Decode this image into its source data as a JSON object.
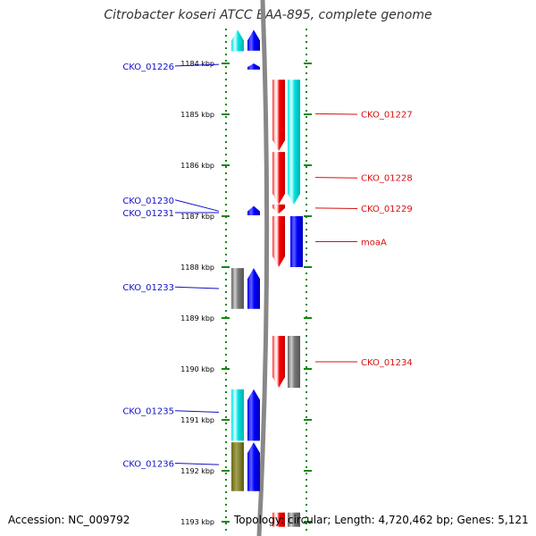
{
  "title": "Citrobacter koseri ATCC BAA-895, complete genome",
  "accession": "Accession: NC_009792",
  "topology": "Topology: circular; Length: 4,720,462 bp; Genes: 5,121",
  "colors": {
    "left_label": "#1010c8",
    "right_label": "#d81010",
    "tick": "#118811",
    "backbone": "#888888",
    "red": "#ff0000",
    "cyan": "#00e5e5",
    "blue": "#0000ff",
    "gray": "#777777",
    "olive": "#7a7a1a"
  },
  "ruler": [
    {
      "kbp": 1184,
      "label": "1184 kbp"
    },
    {
      "kbp": 1185,
      "label": "1185 kbp"
    },
    {
      "kbp": 1186,
      "label": "1186 kbp"
    },
    {
      "kbp": 1187,
      "label": "1187 kbp"
    },
    {
      "kbp": 1188,
      "label": "1188 kbp"
    },
    {
      "kbp": 1189,
      "label": "1189 kbp"
    },
    {
      "kbp": 1190,
      "label": "1190 kbp"
    },
    {
      "kbp": 1191,
      "label": "1191 kbp"
    },
    {
      "kbp": 1192,
      "label": "1192 kbp"
    },
    {
      "kbp": 1193,
      "label": "1193 kbp"
    }
  ],
  "features": [
    {
      "label": "CKO_01226",
      "side": "left",
      "lane": "blue",
      "color": "blue",
      "start": 1183.34,
      "end": 1183.75,
      "dir": "top",
      "label_kbp": 1184.05,
      "tip_kbp": 1184.02
    },
    {
      "label": "",
      "side": "left",
      "lane": "cyan",
      "color": "cyan",
      "start": 1183.34,
      "end": 1183.76,
      "dir": "top"
    },
    {
      "label": "",
      "side": "left",
      "lane": "blue",
      "color": "blue",
      "start": 1184.0,
      "end": 1184.12,
      "dir": "top"
    },
    {
      "label": "CKO_01227",
      "side": "right",
      "lane": "red",
      "color": "red",
      "start": 1184.32,
      "end": 1185.72,
      "dir": "bottom",
      "label_kbp": 1184.99,
      "tip_kbp": 1185.0
    },
    {
      "label": "",
      "side": "right",
      "lane": "cyan",
      "color": "cyan",
      "start": 1184.32,
      "end": 1186.77,
      "dir": "bottom"
    },
    {
      "label": "CKO_01228",
      "side": "right",
      "lane": "red",
      "color": "red",
      "start": 1185.74,
      "end": 1186.77,
      "dir": "bottom",
      "label_kbp": 1186.24,
      "tip_kbp": 1186.25
    },
    {
      "label": "CKO_01229",
      "side": "right",
      "lane": "red",
      "color": "red",
      "start": 1186.77,
      "end": 1186.95,
      "dir": "bottom",
      "label_kbp": 1186.84,
      "tip_kbp": 1186.85
    },
    {
      "label": "CKO_01230",
      "side": "left",
      "lane": "blue",
      "color": "blue",
      "start": 1186.8,
      "end": 1186.98,
      "dir": "top",
      "label_kbp": 1186.68,
      "tip_kbp": 1186.9
    },
    {
      "label": "CKO_01231",
      "side": "left",
      "lane": "blue",
      "color": "blue",
      "start": 1186.8,
      "end": 1186.98,
      "dir": "top",
      "label_kbp": 1186.93,
      "tip_kbp": 1186.93
    },
    {
      "label": "moaA",
      "side": "right",
      "lane": "red",
      "color": "red",
      "start": 1187.0,
      "end": 1188.0,
      "dir": "bottom",
      "label_kbp": 1187.5,
      "tip_kbp": 1187.5
    },
    {
      "label": "",
      "side": "right",
      "lane": "blue",
      "color": "blue",
      "start": 1187.0,
      "end": 1188.0,
      "dir": "none"
    },
    {
      "label": "CKO_01233",
      "side": "left",
      "lane": "blue",
      "color": "blue",
      "start": 1188.02,
      "end": 1188.82,
      "dir": "top",
      "label_kbp": 1188.39,
      "tip_kbp": 1188.42
    },
    {
      "label": "",
      "side": "left",
      "lane": "cyan",
      "color": "gray",
      "start": 1188.02,
      "end": 1188.82,
      "dir": "none"
    },
    {
      "label": "CKO_01234",
      "side": "right",
      "lane": "red",
      "color": "red",
      "start": 1189.35,
      "end": 1190.37,
      "dir": "bottom",
      "label_kbp": 1189.86,
      "tip_kbp": 1189.86
    },
    {
      "label": "",
      "side": "right",
      "lane": "cyan",
      "color": "gray",
      "start": 1189.35,
      "end": 1190.37,
      "dir": "none"
    },
    {
      "label": "CKO_01235",
      "side": "left",
      "lane": "blue",
      "color": "blue",
      "start": 1190.4,
      "end": 1191.41,
      "dir": "top",
      "label_kbp": 1190.82,
      "tip_kbp": 1190.85
    },
    {
      "label": "",
      "side": "left",
      "lane": "cyan",
      "color": "cyan",
      "start": 1190.4,
      "end": 1191.41,
      "dir": "none"
    },
    {
      "label": "CKO_01236",
      "side": "left",
      "lane": "blue",
      "color": "blue",
      "start": 1191.44,
      "end": 1192.4,
      "dir": "top",
      "label_kbp": 1191.85,
      "tip_kbp": 1191.88
    },
    {
      "label": "",
      "side": "left",
      "lane": "cyan",
      "color": "olive",
      "start": 1191.44,
      "end": 1192.4,
      "dir": "none"
    },
    {
      "label": "",
      "side": "right",
      "lane": "red",
      "color": "red",
      "start": 1192.82,
      "end": 1193.1,
      "dir": "none"
    },
    {
      "label": "",
      "side": "right",
      "lane": "cyan",
      "color": "gray",
      "start": 1192.82,
      "end": 1193.1,
      "dir": "none"
    }
  ]
}
